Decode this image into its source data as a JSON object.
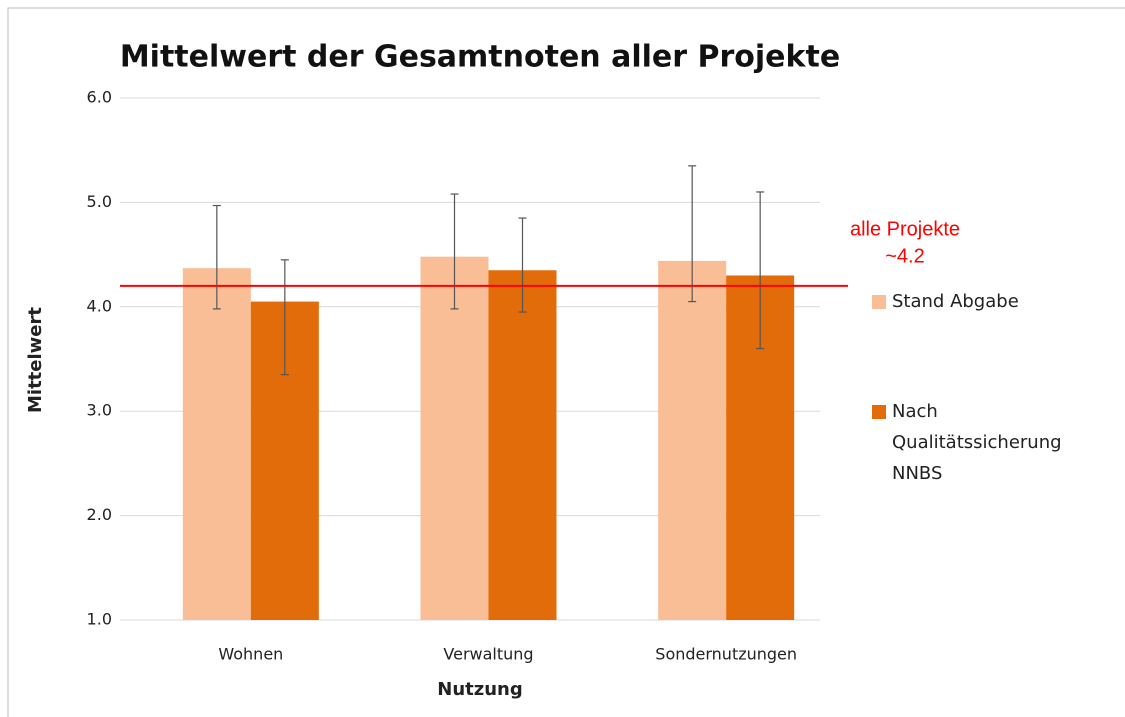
{
  "chart_data": {
    "type": "bar",
    "title": "Mittelwert der Gesamtnoten aller Projekte",
    "x_label": "Nutzung",
    "y_label": "Mittelwert",
    "categories": [
      "Wohnen",
      "Verwaltung",
      "Sondernutzungen"
    ],
    "series": [
      {
        "name": "Stand Abgabe",
        "color": "#f9be96",
        "values": [
          4.37,
          4.48,
          4.44
        ],
        "error_low": [
          3.98,
          3.98,
          4.05
        ],
        "error_high": [
          4.97,
          5.08,
          5.35
        ]
      },
      {
        "name": "Nach Qualitätssicherung NNBS",
        "color": "#e26b0a",
        "values": [
          4.05,
          4.35,
          4.3
        ],
        "error_low": [
          3.35,
          3.95,
          3.6
        ],
        "error_high": [
          4.45,
          4.85,
          5.1
        ]
      }
    ],
    "ylim": [
      1.0,
      6.0
    ],
    "yticks": [
      {
        "value": 1,
        "label": "1.0"
      },
      {
        "value": 2,
        "label": "2.0"
      },
      {
        "value": 3,
        "label": "3.0"
      },
      {
        "value": 4,
        "label": "4.0"
      },
      {
        "value": 5,
        "label": "5.0"
      },
      {
        "value": 6,
        "label": "6.0"
      }
    ],
    "grid": true,
    "reference_line": {
      "value": 4.2,
      "label": "~4.2",
      "text": "alle Projekte",
      "color": "#ff0000"
    },
    "legend": "right"
  }
}
